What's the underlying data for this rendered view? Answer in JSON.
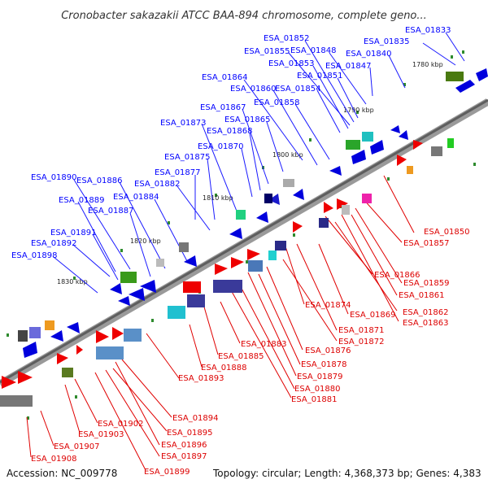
{
  "title": "Cronobacter sakazakii ATCC BAA-894 chromosome, complete geno...",
  "accession": "Accession: NC_009778",
  "summary": "Topology: circular; Length: 4,368,373 bp; Genes: 4,383",
  "colors": {
    "forward_strand": "#0000ff",
    "reverse_strand": "#ff0000",
    "backbone": "#777777",
    "tick": "#2e8b2e"
  },
  "kbp_markers": [
    "1780 kbp",
    "1790 kbp",
    "1800 kbp",
    "1810 kbp",
    "1820 kbp",
    "1830 kbp"
  ],
  "forward_labels": [
    "ESA_01833",
    "ESA_01835",
    "ESA_01840",
    "ESA_01847",
    "ESA_01848",
    "ESA_01851",
    "ESA_01852",
    "ESA_01853",
    "ESA_01854",
    "ESA_01855",
    "ESA_01858",
    "ESA_01860",
    "ESA_01864",
    "ESA_01865",
    "ESA_01867",
    "ESA_01868",
    "ESA_01870",
    "ESA_01873",
    "ESA_01875",
    "ESA_01877",
    "ESA_01882",
    "ESA_01884",
    "ESA_01886",
    "ESA_01887",
    "ESA_01889",
    "ESA_01890",
    "ESA_01891",
    "ESA_01892",
    "ESA_01898"
  ],
  "reverse_labels": [
    "ESA_01850",
    "ESA_01857",
    "ESA_01859",
    "ESA_01861",
    "ESA_01862",
    "ESA_01863",
    "ESA_01866",
    "ESA_01869",
    "ESA_01871",
    "ESA_01872",
    "ESA_01874",
    "ESA_01876",
    "ESA_01878",
    "ESA_01879",
    "ESA_01880",
    "ESA_01881",
    "ESA_01883",
    "ESA_01885",
    "ESA_01888",
    "ESA_01893",
    "ESA_01894",
    "ESA_01895",
    "ESA_01896",
    "ESA_01897",
    "ESA_01899",
    "ESA_01902",
    "ESA_01903",
    "ESA_01907",
    "ESA_01908"
  ]
}
